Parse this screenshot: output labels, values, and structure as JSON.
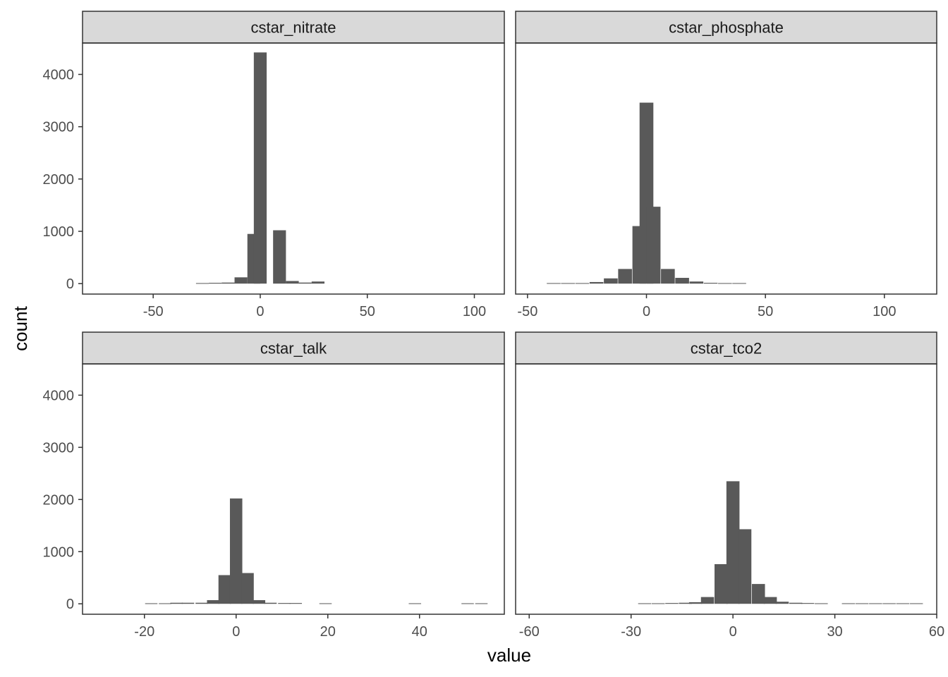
{
  "chart_data": {
    "type": "bar",
    "subtype": "faceted-histogram",
    "xlabel": "value",
    "ylabel": "count",
    "grid": false,
    "legend": "none",
    "colors": {
      "bar": "#595959",
      "strip_fill": "#d9d9d9",
      "strip_border": "#333333",
      "panel_border": "#333333",
      "tick_label": "#4d4d4d"
    },
    "ylim": [
      -200,
      4600
    ],
    "yticks": [
      0,
      1000,
      2000,
      3000,
      4000
    ],
    "facets": [
      {
        "title": "cstar_nitrate",
        "xlim": [
          -83,
          114
        ],
        "xticks": [
          -50,
          0,
          50,
          100
        ],
        "binwidth": 6,
        "bins": [
          {
            "x": -27,
            "count": 10
          },
          {
            "x": -21,
            "count": 15
          },
          {
            "x": -15,
            "count": 20
          },
          {
            "x": -9,
            "count": 120
          },
          {
            "x": -3,
            "count": 950
          },
          {
            "x": 0,
            "count": 4420,
            "width": 6
          },
          {
            "x": 9,
            "count": 1020
          },
          {
            "x": 15,
            "count": 50
          },
          {
            "x": 21,
            "count": 20
          },
          {
            "x": 27,
            "count": 40
          }
        ]
      },
      {
        "title": "cstar_phosphate",
        "xlim": [
          -55,
          122
        ],
        "xticks": [
          -50,
          0,
          50,
          100
        ],
        "binwidth": 5.8,
        "bins": [
          {
            "x": -39,
            "count": 10
          },
          {
            "x": -33,
            "count": 10
          },
          {
            "x": -27,
            "count": 10
          },
          {
            "x": -21,
            "count": 30
          },
          {
            "x": -15,
            "count": 100
          },
          {
            "x": -9,
            "count": 280
          },
          {
            "x": -3,
            "count": 1100
          },
          {
            "x": 0,
            "count": 3460
          },
          {
            "x": 3,
            "count": 1470
          },
          {
            "x": 9,
            "count": 280
          },
          {
            "x": 15,
            "count": 110
          },
          {
            "x": 21,
            "count": 40
          },
          {
            "x": 27,
            "count": 15
          },
          {
            "x": 33,
            "count": 10
          },
          {
            "x": 39,
            "count": 10
          }
        ]
      },
      {
        "title": "cstar_talk",
        "xlim": [
          -33.5,
          58.5
        ],
        "xticks": [
          -20,
          0,
          20,
          40
        ],
        "binwidth": 2.7,
        "bins": [
          {
            "x": -18.5,
            "count": 10
          },
          {
            "x": -15.5,
            "count": 10
          },
          {
            "x": -13,
            "count": 20
          },
          {
            "x": -10.5,
            "count": 20
          },
          {
            "x": -7.5,
            "count": 20
          },
          {
            "x": -5,
            "count": 70
          },
          {
            "x": -2.5,
            "count": 550
          },
          {
            "x": 0,
            "count": 2020
          },
          {
            "x": 2.5,
            "count": 590
          },
          {
            "x": 5,
            "count": 70
          },
          {
            "x": 7.5,
            "count": 20
          },
          {
            "x": 10.5,
            "count": 15
          },
          {
            "x": 13,
            "count": 15
          },
          {
            "x": 19.5,
            "count": 10
          },
          {
            "x": 39,
            "count": 10
          },
          {
            "x": 50.5,
            "count": 10
          },
          {
            "x": 53.5,
            "count": 10
          }
        ]
      },
      {
        "title": "cstar_tco2",
        "xlim": [
          -64,
          60
        ],
        "xticks": [
          -60,
          -30,
          0,
          30,
          60
        ],
        "binwidth": 3.85,
        "bins": [
          {
            "x": -26,
            "count": 10
          },
          {
            "x": -22,
            "count": 10
          },
          {
            "x": -18,
            "count": 15
          },
          {
            "x": -14,
            "count": 20
          },
          {
            "x": -11,
            "count": 30
          },
          {
            "x": -7.5,
            "count": 130
          },
          {
            "x": -3.5,
            "count": 760
          },
          {
            "x": 0,
            "count": 2350
          },
          {
            "x": 3.5,
            "count": 1430
          },
          {
            "x": 7.5,
            "count": 380
          },
          {
            "x": 11,
            "count": 130
          },
          {
            "x": 14.5,
            "count": 40
          },
          {
            "x": 18.5,
            "count": 20
          },
          {
            "x": 22,
            "count": 15
          },
          {
            "x": 26,
            "count": 10
          },
          {
            "x": 34,
            "count": 10
          },
          {
            "x": 38,
            "count": 10
          },
          {
            "x": 42,
            "count": 10
          },
          {
            "x": 46,
            "count": 10
          },
          {
            "x": 50,
            "count": 10
          },
          {
            "x": 54,
            "count": 10
          }
        ]
      }
    ]
  }
}
